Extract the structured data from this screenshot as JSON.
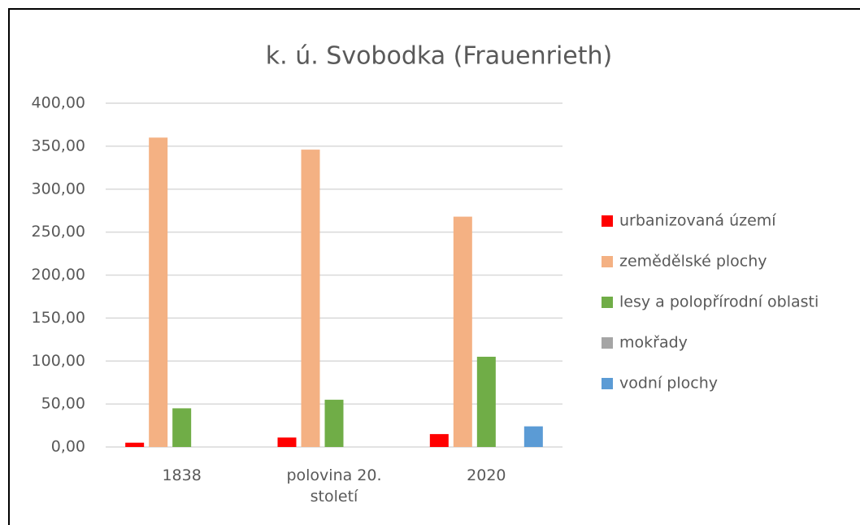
{
  "chart_data": {
    "type": "bar",
    "title": "k. ú. Svobodka (Frauenrieth)",
    "categories": [
      "1838",
      "polovina 20. století",
      "2020"
    ],
    "series": [
      {
        "name": "urbanizovaná území",
        "color": "#ff0000",
        "values": [
          5,
          11,
          15
        ]
      },
      {
        "name": "zemědělské plochy",
        "color": "#f4b183",
        "values": [
          360,
          346,
          268
        ]
      },
      {
        "name": "lesy a polopřírodní oblasti",
        "color": "#70ad47",
        "values": [
          45,
          55,
          105
        ]
      },
      {
        "name": "mokřady",
        "color": "#a5a5a5",
        "values": [
          0,
          0,
          0
        ]
      },
      {
        "name": "vodní plochy",
        "color": "#5b9bd5",
        "values": [
          0,
          0,
          24
        ]
      }
    ],
    "ylim": [
      0,
      400
    ],
    "yticks": [
      {
        "value": 0,
        "label": "0,00"
      },
      {
        "value": 50,
        "label": "50,00"
      },
      {
        "value": 100,
        "label": "100,00"
      },
      {
        "value": 150,
        "label": "150,00"
      },
      {
        "value": 200,
        "label": "200,00"
      },
      {
        "value": 250,
        "label": "250,00"
      },
      {
        "value": 300,
        "label": "300,00"
      },
      {
        "value": 350,
        "label": "350,00"
      },
      {
        "value": 400,
        "label": "400,00"
      }
    ],
    "grid": true,
    "legend": "right"
  }
}
